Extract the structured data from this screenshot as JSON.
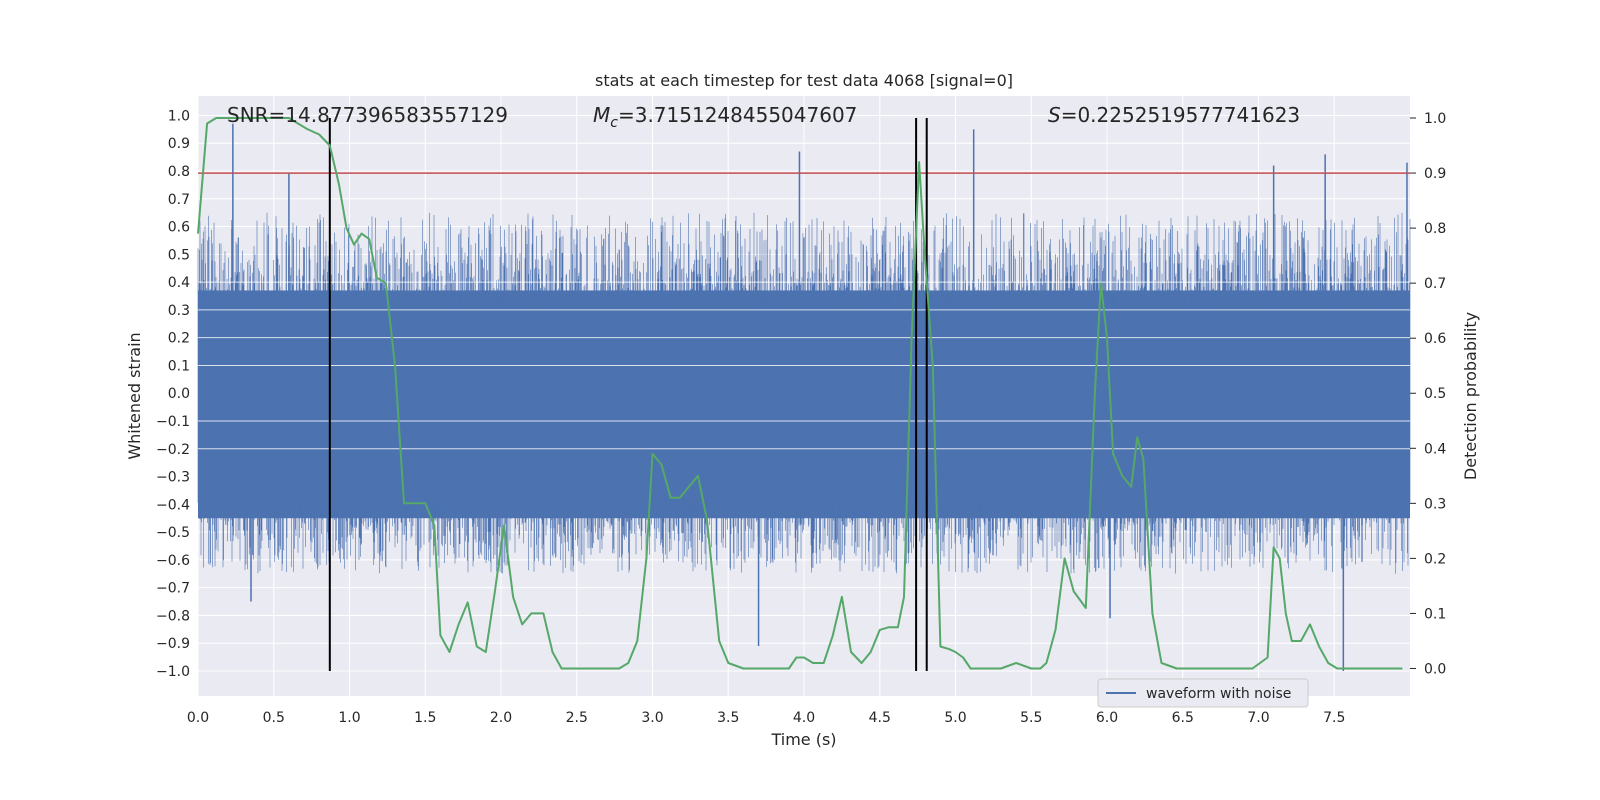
{
  "chart_data": {
    "type": "line",
    "title": "stats at each timestep for test data 4068 [signal=0]",
    "xlabel": "Time (s)",
    "ylabel_left": "Whitened strain",
    "ylabel_right": "Detection probability",
    "xlim": [
      0.0,
      8.0
    ],
    "ylim_left": [
      -1.09,
      1.07
    ],
    "ylim_right": [
      -0.05,
      1.04
    ],
    "x_ticks": [
      "0.0",
      "0.5",
      "1.0",
      "1.5",
      "2.0",
      "2.5",
      "3.0",
      "3.5",
      "4.0",
      "4.5",
      "5.0",
      "5.5",
      "6.0",
      "6.5",
      "7.0",
      "7.5"
    ],
    "y_ticks_left": [
      "1.0",
      "0.9",
      "0.8",
      "0.7",
      "0.6",
      "0.5",
      "0.4",
      "0.3",
      "0.2",
      "0.1",
      "0.0",
      "-0.1",
      "-0.2",
      "-0.3",
      "-0.4",
      "-0.5",
      "-0.6",
      "-0.7",
      "-0.8",
      "-0.9",
      "-1.0"
    ],
    "y_ticks_right": [
      "1.0",
      "0.9",
      "0.8",
      "0.7",
      "0.6",
      "0.5",
      "0.4",
      "0.3",
      "0.2",
      "0.1",
      "0.0"
    ],
    "annotations": {
      "snr": "SNR=14.877396583557129",
      "mc_symbol": "M",
      "mc_sub": "c",
      "mc_value": "=3.7151248455047607",
      "s_symbol": "S",
      "s_value": "=0.2252519577741623"
    },
    "legend": {
      "label": "waveform with noise",
      "placement": "lower-right"
    },
    "threshold_line": {
      "y_right": 0.9,
      "color": "#c44e52"
    },
    "vertical_lines": [
      0.87,
      4.74,
      4.81
    ],
    "vline_range_left": [
      -1.0,
      1.0
    ],
    "waveform": {
      "name": "waveform with noise",
      "color": "#4c72b0",
      "core_band": [
        -0.45,
        0.37
      ],
      "max_amplitude": 0.65,
      "spikes": [
        [
          0.23,
          0.97
        ],
        [
          0.35,
          -0.75
        ],
        [
          0.6,
          0.79
        ],
        [
          3.7,
          -0.91
        ],
        [
          3.97,
          0.87
        ],
        [
          4.74,
          0.8
        ],
        [
          5.12,
          0.95
        ],
        [
          6.02,
          -0.81
        ],
        [
          7.1,
          0.82
        ],
        [
          7.44,
          0.86
        ],
        [
          7.56,
          -1.0
        ],
        [
          7.98,
          0.83
        ]
      ]
    },
    "series": [
      {
        "name": "detection probability",
        "color": "#55a868",
        "x": [
          0.0,
          0.06,
          0.12,
          0.2,
          0.3,
          0.4,
          0.5,
          0.6,
          0.66,
          0.72,
          0.8,
          0.87,
          0.93,
          0.98,
          1.03,
          1.08,
          1.13,
          1.18,
          1.24,
          1.3,
          1.36,
          1.42,
          1.5,
          1.56,
          1.6,
          1.66,
          1.72,
          1.78,
          1.84,
          1.9,
          1.96,
          2.02,
          2.08,
          2.14,
          2.2,
          2.28,
          2.34,
          2.4,
          2.5,
          2.6,
          2.7,
          2.78,
          2.84,
          2.9,
          2.96,
          3.0,
          3.06,
          3.12,
          3.18,
          3.24,
          3.3,
          3.36,
          3.44,
          3.5,
          3.6,
          3.7,
          3.8,
          3.9,
          3.95,
          4.0,
          4.06,
          4.13,
          4.19,
          4.25,
          4.31,
          4.38,
          4.44,
          4.5,
          4.56,
          4.62,
          4.66,
          4.71,
          4.76,
          4.8,
          4.85,
          4.9,
          4.96,
          5.0,
          5.05,
          5.1,
          5.2,
          5.3,
          5.4,
          5.5,
          5.56,
          5.6,
          5.66,
          5.72,
          5.78,
          5.86,
          5.92,
          5.96,
          6.0,
          6.04,
          6.1,
          6.16,
          6.2,
          6.24,
          6.3,
          6.36,
          6.46,
          6.6,
          6.8,
          6.96,
          7.06,
          7.1,
          7.14,
          7.18,
          7.22,
          7.28,
          7.34,
          7.4,
          7.46,
          7.52,
          7.6,
          7.8,
          7.95
        ],
        "y": [
          0.79,
          0.99,
          1.0,
          1.0,
          1.0,
          1.0,
          1.0,
          1.0,
          0.99,
          0.98,
          0.97,
          0.95,
          0.88,
          0.8,
          0.77,
          0.79,
          0.78,
          0.71,
          0.7,
          0.55,
          0.3,
          0.3,
          0.3,
          0.26,
          0.06,
          0.03,
          0.08,
          0.12,
          0.04,
          0.03,
          0.14,
          0.26,
          0.13,
          0.08,
          0.1,
          0.1,
          0.03,
          0.0,
          0.0,
          0.0,
          0.0,
          0.0,
          0.01,
          0.05,
          0.2,
          0.39,
          0.37,
          0.31,
          0.31,
          0.33,
          0.35,
          0.27,
          0.05,
          0.01,
          0.0,
          0.0,
          0.0,
          0.0,
          0.02,
          0.02,
          0.01,
          0.01,
          0.06,
          0.13,
          0.03,
          0.01,
          0.03,
          0.07,
          0.075,
          0.075,
          0.13,
          0.6,
          0.92,
          0.74,
          0.55,
          0.04,
          0.035,
          0.03,
          0.02,
          0.0,
          0.0,
          0.0,
          0.01,
          0.0,
          0.0,
          0.01,
          0.07,
          0.2,
          0.14,
          0.11,
          0.5,
          0.7,
          0.6,
          0.39,
          0.35,
          0.33,
          0.42,
          0.38,
          0.1,
          0.01,
          0.0,
          0.0,
          0.0,
          0.0,
          0.02,
          0.22,
          0.2,
          0.1,
          0.05,
          0.05,
          0.08,
          0.04,
          0.01,
          0.0,
          0.0,
          0.0,
          0.0
        ]
      }
    ]
  }
}
